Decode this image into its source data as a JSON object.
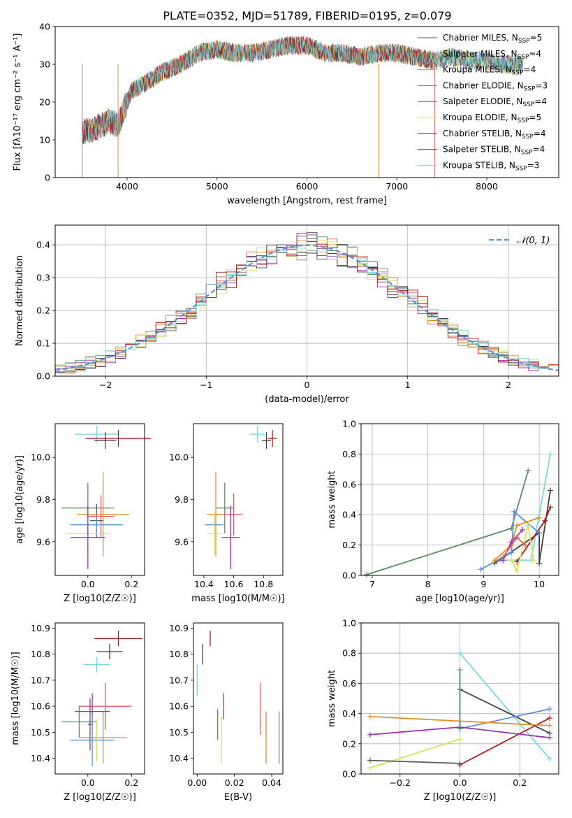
{
  "figure_title": "PLATE=0352, MJD=51789, FIBERID=0195, z=0.079",
  "colors": {
    "Chabrier MILES": "#5a5a5a",
    "Salpeter MILES": "#e06060",
    "Kroupa MILES": "#e0902a",
    "Chabrier ELODIE": "#5a8a6a",
    "Salpeter ELODIE": "#9b30b0",
    "Kroupa ELODIE": "#d8e060",
    "Chabrier STELIB": "#404040",
    "Salpeter STELIB": "#b01818",
    "Kroupa STELIB": "#7ad8d8",
    "normal": "#5a8fd8"
  },
  "chart_data": [
    {
      "id": "spectrum",
      "type": "line",
      "xlabel": "wavelength [Angstrom, rest frame]",
      "ylabel": "Flux [fλ10⁻¹⁷ erg cm⁻² s⁻¹ A⁻¹]",
      "xlim": [
        3200,
        8800
      ],
      "ylim": [
        0,
        40
      ],
      "xticks": [
        4000,
        5000,
        6000,
        7000,
        8000
      ],
      "yticks": [
        0,
        10,
        20,
        30,
        40
      ],
      "legend_position": "top-right",
      "series": [
        {
          "name": "Chabrier MILES, N_SSP=5",
          "label_main": "Chabrier MILES, N",
          "label_sub": "SSP",
          "label_end": "=5"
        },
        {
          "name": "Salpeter MILES, N_SSP=4",
          "label_main": "Salpeter MILES, N",
          "label_sub": "SSP",
          "label_end": "=4"
        },
        {
          "name": "Kroupa MILES, N_SSP=4",
          "label_main": "Kroupa MILES, N",
          "label_sub": "SSP",
          "label_end": "=4"
        },
        {
          "name": "Chabrier ELODIE, N_SSP=3",
          "label_main": "Chabrier ELODIE, N",
          "label_sub": "SSP",
          "label_end": "=3"
        },
        {
          "name": "Salpeter ELODIE, N_SSP=4",
          "label_main": "Salpeter ELODIE, N",
          "label_sub": "SSP",
          "label_end": "=4"
        },
        {
          "name": "Kroupa ELODIE, N_SSP=5",
          "label_main": "Kroupa ELODIE, N",
          "label_sub": "SSP",
          "label_end": "=5"
        },
        {
          "name": "Chabrier STELIB, N_SSP=4",
          "label_main": "Chabrier STELIB, N",
          "label_sub": "SSP",
          "label_end": "=4"
        },
        {
          "name": "Salpeter STELIB, N_SSP=4",
          "label_main": "Salpeter STELIB, N",
          "label_sub": "SSP",
          "label_end": "=4"
        },
        {
          "name": "Kroupa STELIB, N_SSP=3",
          "label_main": "Kroupa STELIB, N",
          "label_sub": "SSP",
          "label_end": "=3"
        }
      ],
      "spectrum_shape": [
        [
          3500,
          12
        ],
        [
          3650,
          13
        ],
        [
          3800,
          15
        ],
        [
          3900,
          14
        ],
        [
          3980,
          19
        ],
        [
          4050,
          23
        ],
        [
          4200,
          25
        ],
        [
          4400,
          28
        ],
        [
          4600,
          30
        ],
        [
          4800,
          33
        ],
        [
          5000,
          34
        ],
        [
          5200,
          33
        ],
        [
          5400,
          33
        ],
        [
          5600,
          34
        ],
        [
          5800,
          35
        ],
        [
          6000,
          35
        ],
        [
          6200,
          33
        ],
        [
          6400,
          33
        ],
        [
          6600,
          32
        ],
        [
          6800,
          33
        ],
        [
          7000,
          33
        ],
        [
          7200,
          32
        ],
        [
          7400,
          31
        ],
        [
          7600,
          32
        ],
        [
          7800,
          31
        ],
        [
          8000,
          31
        ],
        [
          8200,
          30
        ],
        [
          8400,
          30
        ]
      ]
    },
    {
      "id": "residuals",
      "type": "line",
      "xlabel": "(data-model)/error",
      "ylabel": "Normed distribution",
      "xlim": [
        -2.5,
        2.5
      ],
      "ylim": [
        0,
        0.46
      ],
      "xticks": [
        -2,
        -1,
        0,
        1,
        2
      ],
      "xtick_labels": [
        "−2",
        "−1",
        "0",
        "1",
        "2"
      ],
      "yticks": [
        0,
        0.1,
        0.2,
        0.3,
        0.4
      ],
      "ytick_labels": [
        "0.0",
        "0.1",
        "0.2",
        "0.3",
        "0.4"
      ],
      "grid": true,
      "legend_label": "𝒩(0, 1)",
      "legend_position": "top-right",
      "normal_curve": {
        "mean": 0,
        "sigma": 1
      }
    },
    {
      "id": "age-vs-Z",
      "type": "scatter",
      "xlabel": "Z [log10(Z/Z☉)]",
      "ylabel": "age [log10(age/yr)]",
      "xlim": [
        -0.15,
        0.26
      ],
      "ylim": [
        9.44,
        10.16
      ],
      "xticks": [
        0,
        0.2
      ],
      "xtick_labels": [
        "0.0",
        "0.2"
      ],
      "yticks": [
        9.6,
        9.8,
        10.0
      ],
      "ytick_labels": [
        "9.6",
        "9.8",
        "10.0"
      ],
      "points": [
        {
          "series": "Kroupa STELIB",
          "x": 0.04,
          "y": 10.11,
          "xerr": 0.1,
          "yerr": 0.04
        },
        {
          "series": "Salpeter STELIB",
          "x": 0.14,
          "y": 10.09,
          "xerr": 0.15,
          "yerr": 0.04
        },
        {
          "series": "Chabrier STELIB",
          "x": 0.08,
          "y": 10.08,
          "xerr": 0.05,
          "yerr": 0.04
        },
        {
          "series": "Chabrier ELODIE",
          "x": 0.0,
          "y": 9.76,
          "xerr": 0.12,
          "yerr": 0.12
        },
        {
          "series": "Kroupa MILES",
          "x": 0.07,
          "y": 9.73,
          "xerr": 0.12,
          "yerr": 0.2
        },
        {
          "series": "Salpeter MILES",
          "x": 0.06,
          "y": 9.72,
          "xerr": 0.06,
          "yerr": 0.1
        },
        {
          "series": "Chabrier MILES",
          "x": 0.04,
          "y": 9.7,
          "xerr": 0.03,
          "yerr": 0.08
        },
        {
          "series": "normal",
          "x": 0.04,
          "y": 9.68,
          "xerr": 0.12,
          "yerr": 0.05
        },
        {
          "series": "Kroupa ELODIE",
          "x": 0.0,
          "y": 9.64,
          "xerr": 0.1,
          "yerr": 0.1
        },
        {
          "series": "Salpeter ELODIE",
          "x": 0.0,
          "y": 9.62,
          "xerr": 0.08,
          "yerr": 0.15
        }
      ]
    },
    {
      "id": "age-vs-mass",
      "type": "scatter",
      "xlabel": "mass [log10(M/M☉)]",
      "ylabel": "",
      "xlim": [
        10.33,
        10.93
      ],
      "ylim": [
        9.44,
        10.16
      ],
      "xticks": [
        10.4,
        10.6,
        10.8
      ],
      "xtick_labels": [
        "10.4",
        "10.6",
        "10.8"
      ],
      "yticks": [
        9.6,
        9.8,
        10.0
      ],
      "ytick_labels": [
        "9.6",
        "9.8",
        "10.0"
      ],
      "points": [
        {
          "series": "Kroupa STELIB",
          "x": 10.76,
          "y": 10.11,
          "xerr": 0.05,
          "yerr": 0.04
        },
        {
          "series": "Salpeter STELIB",
          "x": 10.86,
          "y": 10.09,
          "xerr": 0.03,
          "yerr": 0.04
        },
        {
          "series": "Chabrier STELIB",
          "x": 10.82,
          "y": 10.08,
          "xerr": 0.03,
          "yerr": 0.04
        },
        {
          "series": "Chabrier ELODIE",
          "x": 10.54,
          "y": 9.76,
          "xerr": 0.06,
          "yerr": 0.12
        },
        {
          "series": "Kroupa MILES",
          "x": 10.48,
          "y": 9.73,
          "xerr": 0.06,
          "yerr": 0.2
        },
        {
          "series": "Salpeter MILES",
          "x": 10.6,
          "y": 9.73,
          "xerr": 0.06,
          "yerr": 0.1
        },
        {
          "series": "normal",
          "x": 10.47,
          "y": 9.68,
          "xerr": 0.06,
          "yerr": 0.05
        },
        {
          "series": "Kroupa ELODIE",
          "x": 10.47,
          "y": 9.64,
          "xerr": 0.05,
          "yerr": 0.1
        },
        {
          "series": "Salpeter ELODIE",
          "x": 10.58,
          "y": 9.62,
          "xerr": 0.06,
          "yerr": 0.15
        }
      ]
    },
    {
      "id": "weight-vs-age",
      "type": "line",
      "xlabel": "age [log10(age/yr)]",
      "ylabel": "mass weight",
      "xlim": [
        6.8,
        10.35
      ],
      "ylim": [
        0,
        1.0
      ],
      "xticks": [
        7,
        8,
        9,
        10
      ],
      "xtick_labels": [
        "7",
        "8",
        "9",
        "10"
      ],
      "yticks": [
        0,
        0.2,
        0.4,
        0.6,
        0.8,
        1.0
      ],
      "ytick_labels": [
        "0.0",
        "0.2",
        "0.4",
        "0.6",
        "0.8",
        "1.0"
      ],
      "grid": true,
      "series": [
        {
          "name": "Chabrier ELODIE",
          "points": [
            [
              6.9,
              0.005
            ],
            [
              9.5,
              0.31
            ],
            [
              9.8,
              0.69
            ]
          ]
        },
        {
          "name": "Kroupa STELIB",
          "points": [
            [
              9.3,
              0.1
            ],
            [
              9.85,
              0.1
            ],
            [
              10.2,
              0.8
            ]
          ]
        },
        {
          "name": "Chabrier STELIB",
          "points": [
            [
              9.2,
              0.08
            ],
            [
              10.0,
              0.28
            ],
            [
              10.0,
              0.08
            ],
            [
              10.2,
              0.56
            ]
          ]
        },
        {
          "name": "Salpeter STELIB",
          "points": [
            [
              9.6,
              0.09
            ],
            [
              10.1,
              0.36
            ],
            [
              10.2,
              0.45
            ]
          ]
        },
        {
          "name": "normal",
          "points": [
            [
              8.95,
              0.04
            ],
            [
              9.5,
              0.15
            ],
            [
              9.55,
              0.42
            ],
            [
              10.0,
              0.28
            ]
          ]
        },
        {
          "name": "Kroupa MILES",
          "points": [
            [
              9.2,
              0.1
            ],
            [
              9.5,
              0.2
            ],
            [
              9.6,
              0.33
            ],
            [
              10.0,
              0.38
            ]
          ]
        },
        {
          "name": "Salpeter ELODIE",
          "points": [
            [
              9.35,
              0.1
            ],
            [
              9.5,
              0.22
            ],
            [
              9.7,
              0.3
            ]
          ]
        },
        {
          "name": "Kroupa ELODIE",
          "points": [
            [
              9.5,
              0.1
            ],
            [
              9.6,
              0.03
            ],
            [
              9.8,
              0.33
            ],
            [
              9.9,
              0.1
            ]
          ]
        },
        {
          "name": "Salpeter MILES",
          "points": [
            [
              9.35,
              0.12
            ],
            [
              9.6,
              0.25
            ],
            [
              9.75,
              0.2
            ]
          ]
        }
      ]
    },
    {
      "id": "mass-vs-Z",
      "type": "scatter",
      "xlabel": "Z [log10(Z/Z☉)]",
      "ylabel": "mass [log10(M/M☉)]",
      "xlim": [
        -0.15,
        0.26
      ],
      "ylim": [
        10.34,
        10.92
      ],
      "xticks": [
        0,
        0.2
      ],
      "xtick_labels": [
        "0.0",
        "0.2"
      ],
      "yticks": [
        10.4,
        10.5,
        10.6,
        10.7,
        10.8,
        10.9
      ],
      "ytick_labels": [
        "10.4",
        "10.5",
        "10.6",
        "10.7",
        "10.8",
        "10.9"
      ],
      "points": [
        {
          "series": "Salpeter STELIB",
          "x": 0.14,
          "y": 10.86,
          "xerr": 0.11,
          "yerr": 0.03
        },
        {
          "series": "Chabrier STELIB",
          "x": 0.1,
          "y": 10.81,
          "xerr": 0.06,
          "yerr": 0.03
        },
        {
          "series": "Kroupa STELIB",
          "x": 0.04,
          "y": 10.76,
          "xerr": 0.06,
          "yerr": 0.03
        },
        {
          "series": "Salpeter MILES",
          "x": 0.08,
          "y": 10.6,
          "xerr": 0.12,
          "yerr": 0.09
        },
        {
          "series": "Salpeter ELODIE",
          "x": 0.02,
          "y": 10.58,
          "xerr": 0.08,
          "yerr": 0.07
        },
        {
          "series": "Chabrier ELODIE",
          "x": -0.04,
          "y": 10.54,
          "xerr": 0.08,
          "yerr": 0.06
        },
        {
          "series": "Chabrier MILES",
          "x": 0.01,
          "y": 10.53,
          "xerr": 0.01,
          "yerr": 0.1
        },
        {
          "series": "Kroupa MILES",
          "x": 0.07,
          "y": 10.48,
          "xerr": 0.11,
          "yerr": 0.1
        },
        {
          "series": "Kroupa ELODIE",
          "x": 0.04,
          "y": 10.47,
          "xerr": 0.07,
          "yerr": 0.08
        },
        {
          "series": "normal",
          "x": 0.02,
          "y": 10.47,
          "xerr": 0.1,
          "yerr": 0.1
        }
      ]
    },
    {
      "id": "mass-vs-EBV",
      "type": "scatter",
      "xlabel": "E(B-V)",
      "ylabel": "",
      "xlim": [
        -0.002,
        0.046
      ],
      "ylim": [
        10.34,
        10.92
      ],
      "xticks": [
        0,
        0.02,
        0.04
      ],
      "xtick_labels": [
        "0.00",
        "0.02",
        "0.04"
      ],
      "yticks": [
        10.4,
        10.5,
        10.6,
        10.7,
        10.8,
        10.9
      ],
      "ytick_labels": [
        "10.4",
        "10.5",
        "10.6",
        "10.7",
        "10.8",
        "10.9"
      ],
      "points": [
        {
          "series": "Salpeter STELIB",
          "x": 0.007,
          "y": 10.86,
          "xerr": 0,
          "yerr": 0.03
        },
        {
          "series": "Chabrier STELIB",
          "x": 0.003,
          "y": 10.8,
          "xerr": 0,
          "yerr": 0.04
        },
        {
          "series": "Kroupa STELIB",
          "x": 0.0,
          "y": 10.7,
          "xerr": 0,
          "yerr": 0.06
        },
        {
          "series": "Salpeter ELODIE",
          "x": 0.014,
          "y": 10.6,
          "xerr": 0,
          "yerr": 0.05
        },
        {
          "series": "Chabrier ELODIE",
          "x": 0.011,
          "y": 10.53,
          "xerr": 0,
          "yerr": 0.06
        },
        {
          "series": "Kroupa ELODIE",
          "x": 0.013,
          "y": 10.47,
          "xerr": 0,
          "yerr": 0.09
        },
        {
          "series": "Salpeter MILES",
          "x": 0.034,
          "y": 10.59,
          "xerr": 0,
          "yerr": 0.1
        },
        {
          "series": "Kroupa MILES",
          "x": 0.037,
          "y": 10.48,
          "xerr": 0,
          "yerr": 0.1
        },
        {
          "series": "normal",
          "x": 0.044,
          "y": 10.48,
          "xerr": 0,
          "yerr": 0.1
        }
      ]
    },
    {
      "id": "weight-vs-Z",
      "type": "line",
      "xlabel": "Z [log10(Z/Z☉)]",
      "ylabel": "mass weight",
      "xlim": [
        -0.33,
        0.33
      ],
      "ylim": [
        0,
        1.0
      ],
      "xticks": [
        -0.2,
        0,
        0.2
      ],
      "xtick_labels": [
        "−0.2",
        "0.0",
        "0.2"
      ],
      "yticks": [
        0,
        0.2,
        0.4,
        0.6,
        0.8,
        1.0
      ],
      "ytick_labels": [
        "0.0",
        "0.2",
        "0.4",
        "0.6",
        "0.8",
        "1.0"
      ],
      "grid": true,
      "series": [
        {
          "name": "Kroupa STELIB",
          "points": [
            [
              0.0,
              0.8
            ],
            [
              0.3,
              0.1
            ]
          ]
        },
        {
          "name": "Chabrier STELIB",
          "points": [
            [
              0.0,
              0.56
            ],
            [
              0.3,
              0.27
            ]
          ]
        },
        {
          "name": "Salpeter STELIB",
          "points": [
            [
              0.0,
              0.06
            ],
            [
              0.3,
              0.37
            ]
          ]
        },
        {
          "name": "normal",
          "points": [
            [
              0.0,
              0.3
            ],
            [
              0.3,
              0.43
            ]
          ]
        },
        {
          "name": "Kroupa MILES",
          "points": [
            [
              -0.3,
              0.38
            ],
            [
              0.0,
              0.35
            ],
            [
              0.3,
              0.32
            ]
          ]
        },
        {
          "name": "Salpeter ELODIE",
          "points": [
            [
              -0.3,
              0.26
            ],
            [
              0.0,
              0.31
            ],
            [
              0.3,
              0.24
            ]
          ]
        },
        {
          "name": "Kroupa ELODIE",
          "points": [
            [
              -0.3,
              0.04
            ],
            [
              0.0,
              0.23
            ]
          ]
        },
        {
          "name": "Chabrier MILES",
          "points": [
            [
              -0.3,
              0.09
            ],
            [
              0.0,
              0.07
            ]
          ]
        },
        {
          "name": "Chabrier ELODIE",
          "points": [
            [
              0.0,
              0.69
            ],
            [
              0.0,
              0.3
            ]
          ]
        }
      ]
    }
  ]
}
